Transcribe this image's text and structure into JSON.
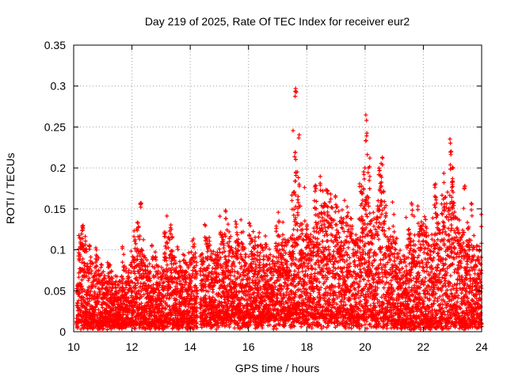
{
  "chart_data": {
    "type": "scatter",
    "title": "Day 219 of 2025, Rate Of TEC Index for receiver eur2",
    "xlabel": "GPS time / hours",
    "ylabel": "ROTI / TECUs",
    "xlim": [
      10,
      24
    ],
    "ylim": [
      0,
      0.35
    ],
    "x_ticks": [
      "10",
      "12",
      "14",
      "16",
      "18",
      "20",
      "22",
      "24"
    ],
    "y_ticks": [
      "0",
      "0.05",
      "0.1",
      "0.15",
      "0.2",
      "0.25",
      "0.3",
      "0.35"
    ],
    "grid": true,
    "marker": "plus",
    "color": "#ff0000",
    "x_step_hours": 0.01,
    "envelope": {
      "x": [
        10.1,
        10.3,
        10.4,
        10.6,
        11.0,
        11.4,
        11.7,
        12.0,
        12.2,
        12.5,
        12.9,
        13.2,
        13.6,
        14.0,
        14.2,
        14.35,
        14.6,
        15.0,
        15.3,
        15.7,
        16.0,
        16.4,
        16.8,
        17.0,
        17.2,
        17.4,
        17.6,
        17.8,
        18.0,
        18.3,
        18.6,
        18.9,
        19.2,
        19.5,
        19.8,
        20.0,
        20.2,
        20.5,
        20.8,
        21.0,
        21.3,
        21.6,
        22.0,
        22.3,
        22.6,
        22.9,
        23.2,
        23.5,
        23.8,
        24.0
      ],
      "upper": [
        0.07,
        0.13,
        0.11,
        0.09,
        0.09,
        0.08,
        0.09,
        0.09,
        0.15,
        0.12,
        0.1,
        0.12,
        0.09,
        0.1,
        0.1,
        0.11,
        0.12,
        0.13,
        0.14,
        0.12,
        0.12,
        0.11,
        0.11,
        0.12,
        0.13,
        0.13,
        0.19,
        0.16,
        0.13,
        0.17,
        0.16,
        0.16,
        0.14,
        0.14,
        0.15,
        0.22,
        0.18,
        0.2,
        0.15,
        0.14,
        0.12,
        0.12,
        0.13,
        0.15,
        0.14,
        0.2,
        0.18,
        0.14,
        0.13,
        0.12
      ],
      "lower": [
        0.01,
        0.01,
        0.01,
        0.01,
        0.01,
        0.01,
        0.01,
        0.01,
        0.01,
        0.01,
        0.01,
        0.01,
        0.01,
        0.01,
        0.01,
        0.015,
        0.015,
        0.015,
        0.015,
        0.015,
        0.015,
        0.015,
        0.015,
        0.015,
        0.02,
        0.02,
        0.02,
        0.02,
        0.02,
        0.015,
        0.015,
        0.015,
        0.015,
        0.015,
        0.015,
        0.015,
        0.015,
        0.015,
        0.015,
        0.01,
        0.01,
        0.01,
        0.01,
        0.01,
        0.01,
        0.01,
        0.01,
        0.01,
        0.01,
        0.01
      ]
    },
    "gaps": [
      [
        14.24,
        14.33
      ]
    ],
    "peaks": [
      {
        "x": 10.3,
        "y": 0.135,
        "n": 5
      },
      {
        "x": 12.3,
        "y": 0.162,
        "n": 5
      },
      {
        "x": 15.2,
        "y": 0.15,
        "n": 3
      },
      {
        "x": 17.62,
        "y": 0.298,
        "n": 6
      },
      {
        "x": 17.6,
        "y": 0.22,
        "n": 3
      },
      {
        "x": 17.6,
        "y": 0.195,
        "n": 4
      },
      {
        "x": 18.7,
        "y": 0.18,
        "n": 4
      },
      {
        "x": 18.3,
        "y": 0.18,
        "n": 3
      },
      {
        "x": 20.05,
        "y": 0.267,
        "n": 2
      },
      {
        "x": 20.05,
        "y": 0.245,
        "n": 5
      },
      {
        "x": 20.5,
        "y": 0.2,
        "n": 4
      },
      {
        "x": 19.9,
        "y": 0.18,
        "n": 3
      },
      {
        "x": 21.6,
        "y": 0.16,
        "n": 3
      },
      {
        "x": 22.4,
        "y": 0.185,
        "n": 3
      },
      {
        "x": 22.95,
        "y": 0.231,
        "n": 3
      },
      {
        "x": 23.0,
        "y": 0.19,
        "n": 6
      },
      {
        "x": 23.4,
        "y": 0.18,
        "n": 4
      }
    ]
  }
}
